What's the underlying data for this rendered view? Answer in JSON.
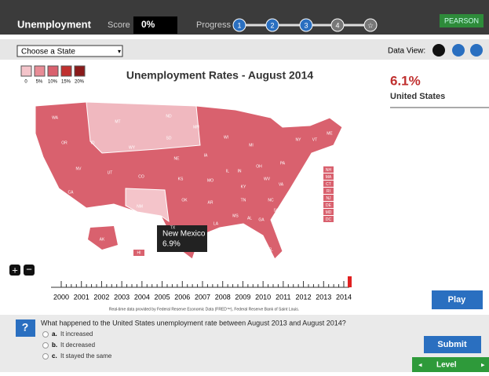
{
  "header": {
    "title": "Unemployment",
    "score_label": "Score",
    "score": "0%",
    "progress_label": "Progress",
    "steps": [
      "1",
      "2",
      "3",
      "4"
    ],
    "brand": "PEARSON"
  },
  "toolbar": {
    "dropdown": "Choose a State",
    "data_view": "Data View:"
  },
  "legend": [
    "0",
    "5%",
    "10%",
    "15%",
    "20%"
  ],
  "map": {
    "title": "Unemployment Rates - August 2014",
    "states": [
      "WA",
      "MT",
      "ND",
      "MN",
      "OR",
      "ID",
      "SD",
      "WY",
      "WI",
      "MI",
      "NY",
      "VT",
      "ME",
      "NV",
      "UT",
      "CO",
      "NE",
      "IA",
      "IL",
      "IN",
      "OH",
      "PA",
      "CA",
      "KS",
      "MO",
      "KY",
      "WV",
      "VA",
      "AZ",
      "NM",
      "OK",
      "AR",
      "TN",
      "NC",
      "TX",
      "LA",
      "MS",
      "AL",
      "GA",
      "SC",
      "FL",
      "AK",
      "HI"
    ],
    "small_states": [
      "NH",
      "MA",
      "CT",
      "RI",
      "NJ",
      "DE",
      "MD",
      "DC"
    ],
    "tooltip": {
      "name": "New Mexico",
      "value": "6.9%"
    }
  },
  "stat": {
    "value": "6.1%",
    "label": "United States"
  },
  "timeline": {
    "years": [
      "2000",
      "2001",
      "2002",
      "2003",
      "2004",
      "2005",
      "2006",
      "2007",
      "2008",
      "2009",
      "2010",
      "2011",
      "2012",
      "2013",
      "2014"
    ],
    "credit": "Real-time data provided by Federal Reserve Economic Data (FRED™), Federal Reserve Bank of Saint Louis."
  },
  "play": "Play",
  "question": {
    "text": "What happened to the United States unemployment rate between August 2013 and August 2014?",
    "options": [
      {
        "letter": "a.",
        "text": "It increased"
      },
      {
        "letter": "b.",
        "text": "It decreased"
      },
      {
        "letter": "c.",
        "text": "It stayed the same"
      }
    ]
  },
  "submit": "Submit",
  "level": "Level"
}
